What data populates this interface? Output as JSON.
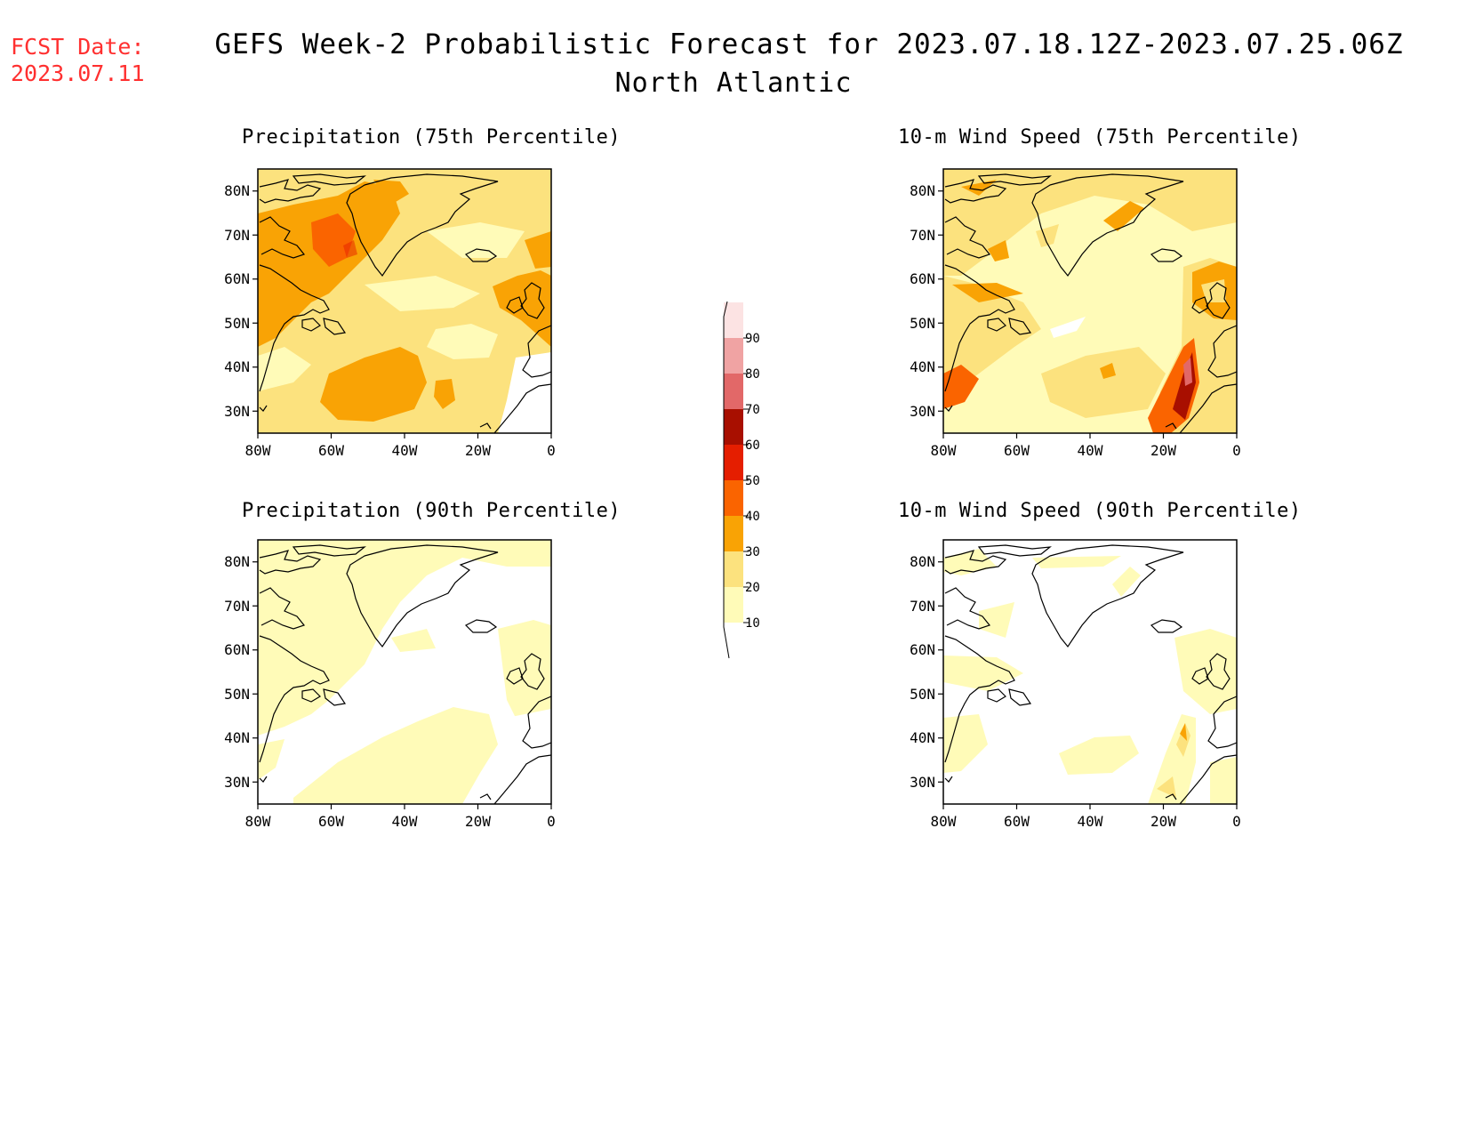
{
  "header": {
    "fcst_label": "FCST Date:",
    "fcst_date": "2023.07.11",
    "title": "GEFS Week-2 Probabilistic Forecast for 2023.07.18.12Z-2023.07.25.06Z",
    "region": "North Atlantic"
  },
  "panels": [
    {
      "title": "Precipitation (75th Percentile)",
      "variable": "precipitation",
      "percentile": 75
    },
    {
      "title": "10-m Wind Speed (75th Percentile)",
      "variable": "wind_speed_10m",
      "percentile": 75
    },
    {
      "title": "Precipitation (90th Percentile)",
      "variable": "precipitation",
      "percentile": 90
    },
    {
      "title": "10-m Wind Speed (90th Percentile)",
      "variable": "wind_speed_10m",
      "percentile": 90
    }
  ],
  "axes": {
    "lon_labels": [
      "80W",
      "60W",
      "40W",
      "20W",
      "0"
    ],
    "lat_labels": [
      "80N",
      "70N",
      "60N",
      "50N",
      "40N",
      "30N"
    ],
    "lon_range": [
      -80,
      0
    ],
    "lat_range": [
      25,
      85
    ]
  },
  "colorbar": {
    "levels": [
      "10",
      "20",
      "30",
      "40",
      "50",
      "60",
      "70",
      "80",
      "90"
    ],
    "colors": [
      "#fffbb8",
      "#fce27e",
      "#f9a305",
      "#fa6400",
      "#e51e00",
      "#a80f00",
      "#e26868",
      "#f0a3a3",
      "#fce3e3"
    ]
  }
}
